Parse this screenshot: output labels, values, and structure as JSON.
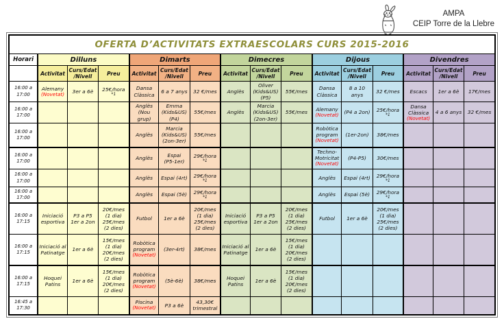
{
  "brand": {
    "org": "AMPA",
    "school": "CEIP Torre de la Llebre"
  },
  "title": "OFERTA D’ACTIVITATS EXTRAESCOLARS CURS 2015-2016",
  "labels": {
    "horari": "Horari",
    "novetat": "(Novetat)",
    "sub": [
      "Activitat",
      "Curs/Edat\n/Nivell",
      "Preu"
    ]
  },
  "colors": {
    "title": "#8f8f3a",
    "novetat": "#ff0000",
    "border": "#000000"
  },
  "days": [
    {
      "name": "Dilluns",
      "header_bg": "#fcfbc5",
      "sub_bg": "#f6ee9c",
      "body_bg": "#fefdd0"
    },
    {
      "name": "Dimarts",
      "header_bg": "#efa678",
      "sub_bg": "#f2b184",
      "body_bg": "#fadcbf"
    },
    {
      "name": "Dimecres",
      "header_bg": "#c2d59c",
      "sub_bg": "#c2d59c",
      "body_bg": "#dae5c3"
    },
    {
      "name": "Dijous",
      "header_bg": "#9ccfe0",
      "sub_bg": "#9ccfe0",
      "body_bg": "#c6e4f0"
    },
    {
      "name": "Divendres",
      "header_bg": "#b2a2c7",
      "sub_bg": "#b2a2c7",
      "body_bg": "#d2c9dc"
    }
  ],
  "rows": [
    {
      "time": "16:00 a\n17:00",
      "cells": [
        {
          "activitat": "Alemany",
          "novetat": true,
          "curs": "3er a 6è",
          "preu": "25€/hora",
          "note": "*1"
        },
        {
          "activitat": "Dansa\nClàssica",
          "curs": "6 a 7 anys",
          "preu": "32 €/mes"
        },
        {
          "activitat": "Anglès",
          "curs": "Oliver\n(Kids&US)\n(P5)",
          "preu": "55€/mes"
        },
        {
          "activitat": "Dansa\nClàssica",
          "curs": "8 a 10\nanys",
          "preu": "32 €/mes"
        },
        {
          "activitat": "Escacs",
          "curs": "1er a 6è",
          "preu": "17€/mes"
        }
      ]
    },
    {
      "time": "16:00 a\n17:00",
      "cells": [
        null,
        {
          "activitat": "Anglès\n(Nou grup)",
          "curs": "Emma\n(Kids&US)\n(P4)",
          "preu": "55€/mes"
        },
        {
          "activitat": "Anglès",
          "curs": "Marcia\n(Kids&US)\n(2on-3er)",
          "preu": "55€/mes"
        },
        {
          "activitat": "Alemany",
          "novetat": true,
          "curs": "(P4 a 2on)",
          "preu": "25€/hora",
          "note": "*1"
        },
        {
          "activitat": "Dansa\nClàssica",
          "novetat": true,
          "curs": "4 a 6 anys",
          "preu": "32 €/mes"
        }
      ]
    },
    {
      "time": "16:00 a\n17:00",
      "cells": [
        null,
        {
          "activitat": "Anglès",
          "curs": "Marcia\n(Kids&US)\n(2on-3er)",
          "preu": "55€/mes"
        },
        null,
        {
          "activitat": "Robòtica\nprogram",
          "novetat": true,
          "curs": "(1er-2on)",
          "preu": "38€/mes"
        },
        null
      ]
    },
    {
      "time": "16:00 a\n17:00",
      "cells": [
        null,
        {
          "activitat": "Anglès",
          "curs": "Espai\n(P5-1er)",
          "preu": "29€/hora",
          "note": "*1"
        },
        null,
        {
          "activitat": "Techno-\nMotricitat",
          "novetat": true,
          "curs": "(P4-P5)",
          "preu": "30€/mes"
        },
        null
      ]
    },
    {
      "time": "16:00 a\n17:00",
      "cells": [
        null,
        {
          "activitat": "Anglès",
          "curs": "Espai (4rt)",
          "preu": "29€/hora",
          "note": "*1"
        },
        null,
        {
          "activitat": "Anglès",
          "curs": "Espai (4rt)",
          "preu": "29€/hora",
          "note": "*1"
        },
        null
      ]
    },
    {
      "time": "16:00 a\n17:00",
      "cells": [
        null,
        {
          "activitat": "Anglès",
          "curs": "Espai (5è)",
          "preu": "29€/hora",
          "note": "*1"
        },
        null,
        {
          "activitat": "Anglès",
          "curs": "Espai (5è)",
          "preu": "29€/hora",
          "note": "*1"
        },
        null
      ]
    },
    {
      "time": "16:00 a\n17:15",
      "cells": [
        {
          "activitat": "Iniciació\nesportiva",
          "curs": "P3 a P5\n1er a 2on",
          "preu": "20€/mes\n(1 dia)\n25€/mes\n(2 dies)"
        },
        {
          "activitat": "Futbol",
          "curs": "1er a 6è",
          "preu": "20€/mes\n(1 dia)\n25€/mes\n(2 dies)"
        },
        {
          "activitat": "Iniciació\nesportiva",
          "curs": "P3 a P5\n1er a 2on",
          "preu": "20€/mes\n(1 dia)\n25€/mes\n(2 dies)"
        },
        {
          "activitat": "Futbol",
          "curs": "1er a 6è",
          "preu": "20€/mes\n(1 dia)\n25€/mes\n(2 dies)"
        },
        null
      ]
    },
    {
      "time": "16:00 a\n17:15",
      "cells": [
        {
          "activitat": "Iniciació al\nPatinatge",
          "curs": "1er a 6è",
          "preu": "15€/mes\n(1 dia)\n20€/mes\n(2 dies)"
        },
        {
          "activitat": "Robòtica\nprogram",
          "novetat": true,
          "curs": "(3er-4rt)",
          "preu": "38€/mes"
        },
        {
          "activitat": "Iniciació al\nPatinatge",
          "curs": "1er a 6è",
          "preu": "15€/mes\n(1 dia)\n20€/mes\n(2 dies)"
        },
        null,
        null
      ]
    },
    {
      "time": "16:00 a\n17:15",
      "cells": [
        {
          "activitat": "Hoquei\nPatins",
          "curs": "1er a 6è",
          "preu": "15€/mes\n(1 dia)\n20€/mes\n(2 dies)"
        },
        {
          "activitat": "Robòtica\nprogram",
          "novetat": true,
          "curs": "(5è-6è)",
          "preu": "38€/mes"
        },
        {
          "activitat": "Hoquei\nPatins",
          "curs": "1er a 6è",
          "preu": "15€/mes\n(1 dia)\n20€/mes\n(2 dies)"
        },
        null,
        null
      ]
    },
    {
      "time": "16:45 a\n17:30",
      "cells": [
        null,
        {
          "activitat": "Piscina",
          "novetat": true,
          "curs": "P3 a 6è",
          "preu": "43,30€\ntrimestral"
        },
        null,
        null,
        null
      ]
    }
  ]
}
